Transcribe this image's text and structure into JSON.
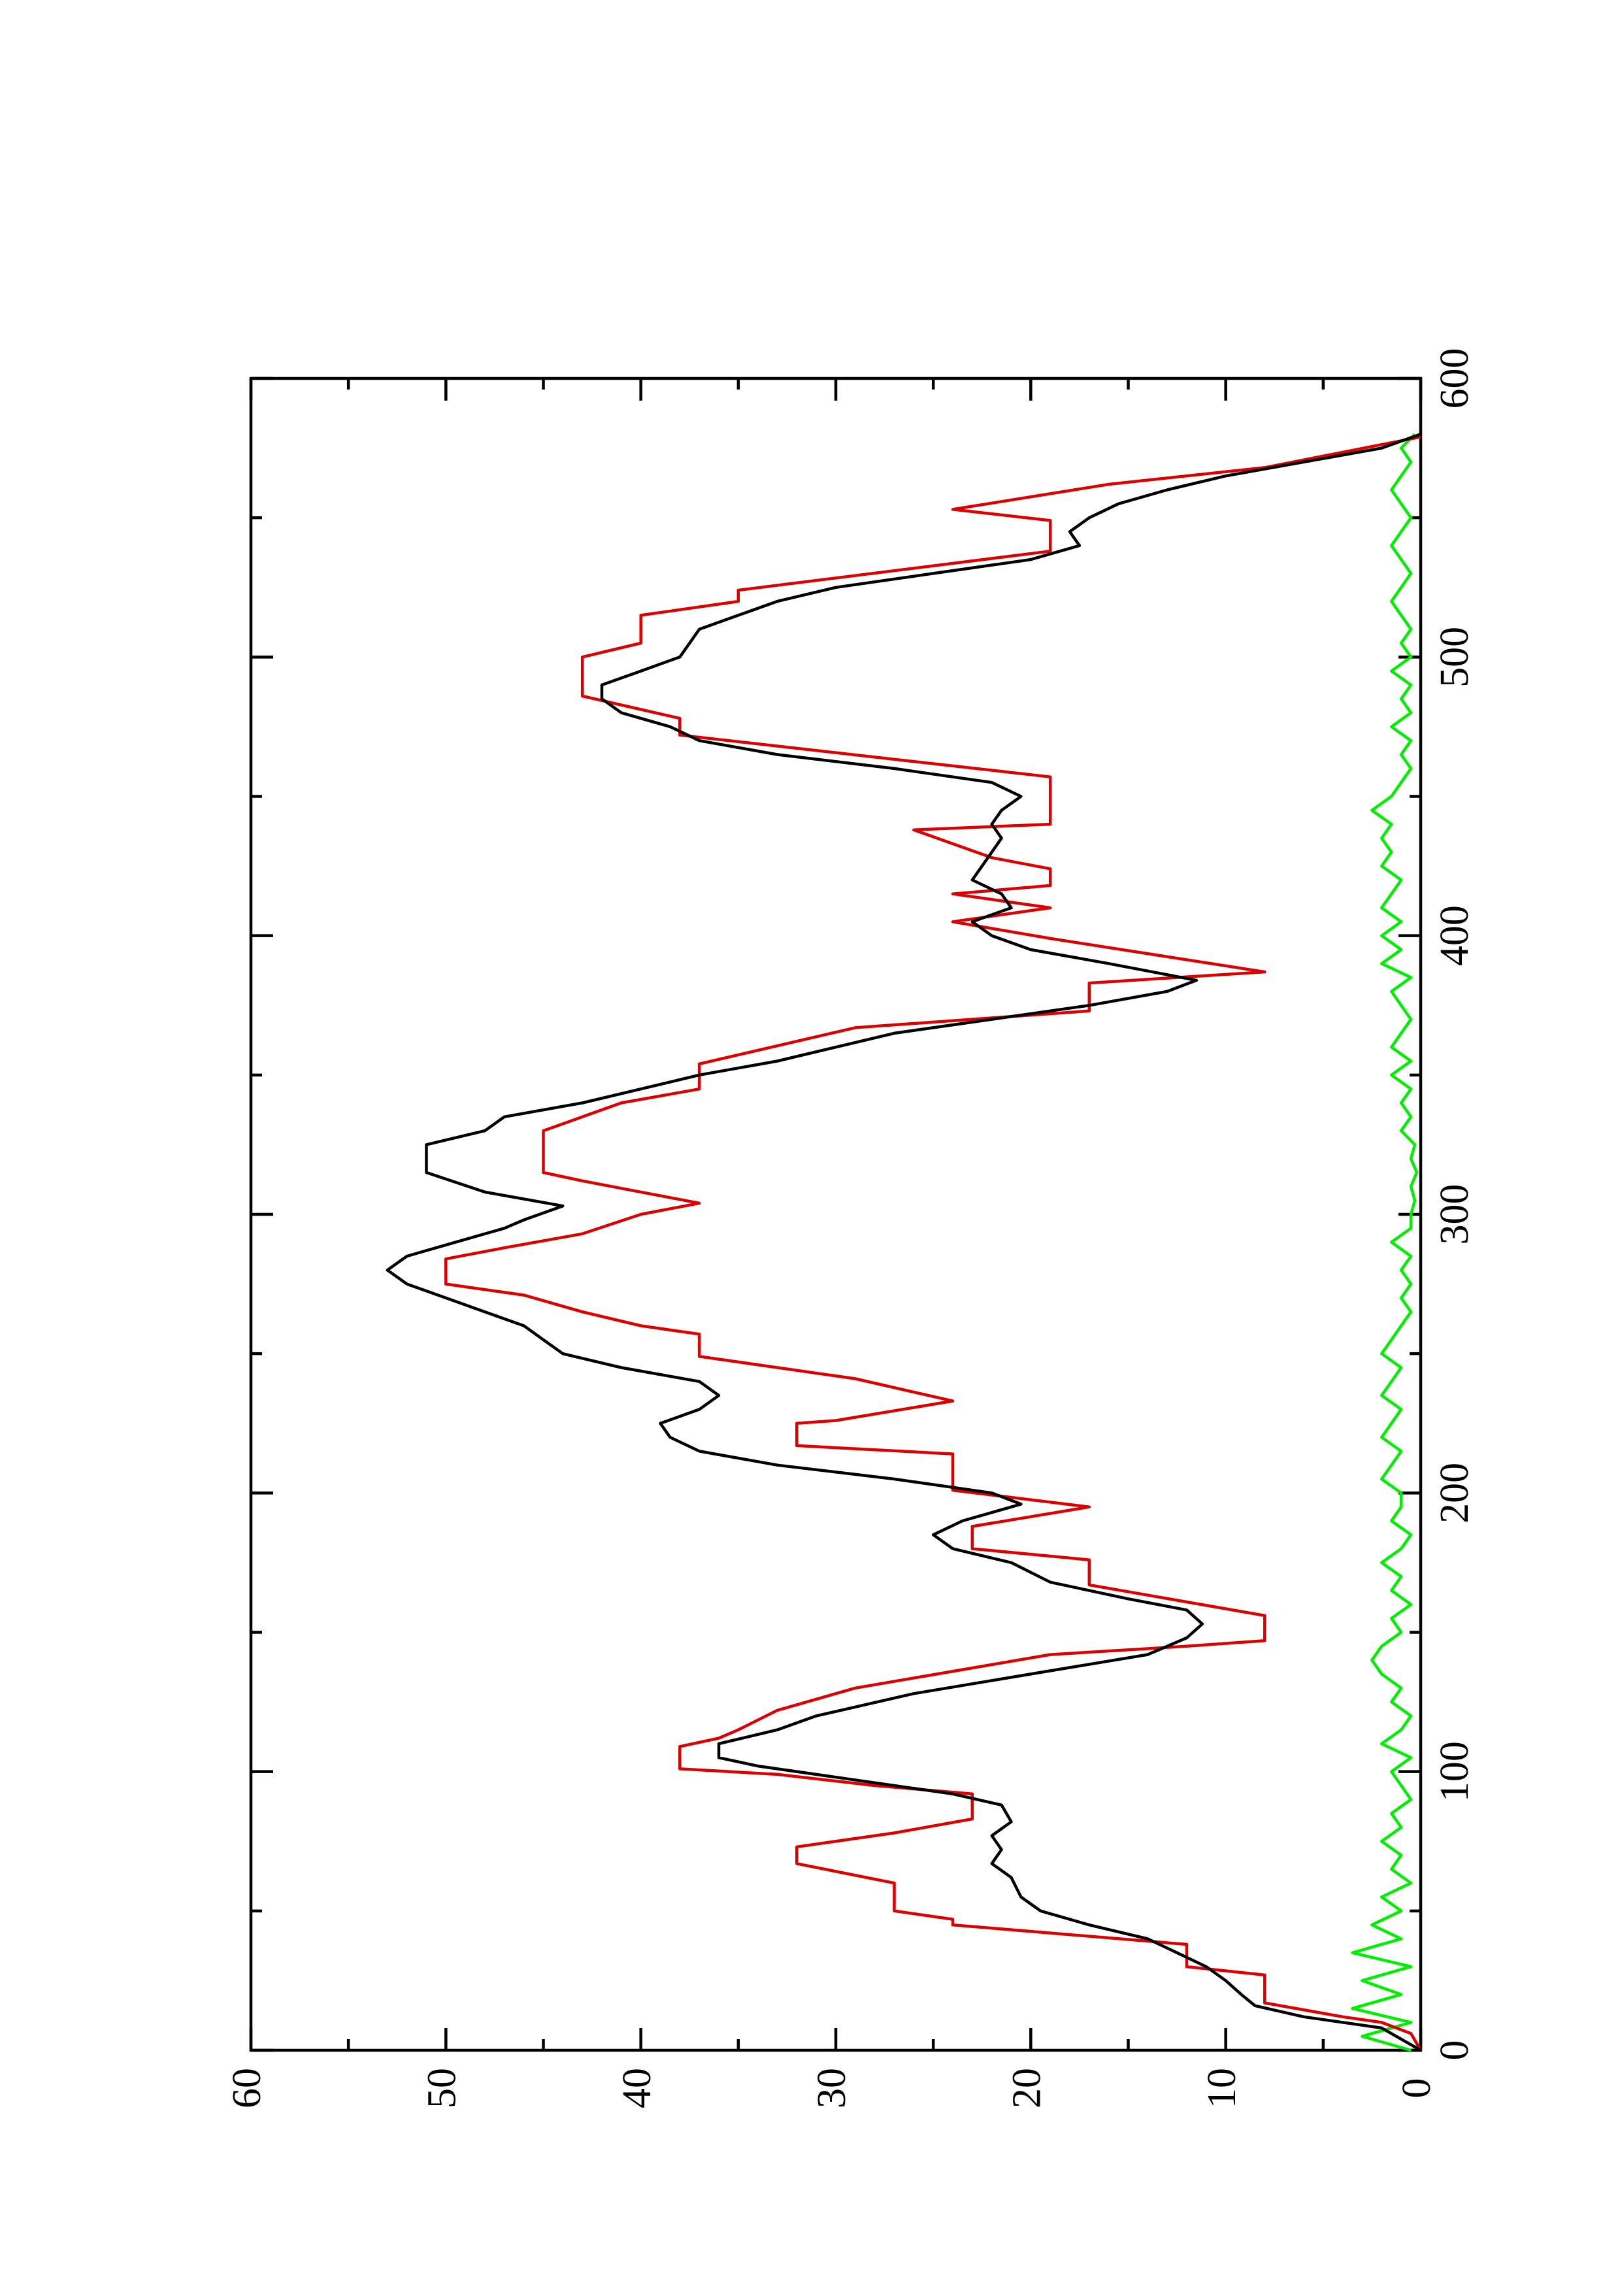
{
  "chart_data": {
    "type": "line",
    "xlim": [
      0,
      600
    ],
    "ylim": [
      0,
      60
    ],
    "xticks": [
      0,
      100,
      200,
      300,
      400,
      500,
      600
    ],
    "yticks": [
      0,
      10,
      20,
      30,
      40,
      50,
      60
    ],
    "xminorticks": [
      50,
      150,
      250,
      350,
      450,
      550
    ],
    "yminorticks": [
      5,
      15,
      25,
      35,
      45,
      55
    ],
    "series": [
      {
        "color": "#00ee00",
        "x": [
          0,
          5,
          10,
          15,
          20,
          25,
          30,
          35,
          40,
          45,
          50,
          55,
          60,
          65,
          70,
          75,
          80,
          85,
          90,
          95,
          100,
          105,
          110,
          115,
          120,
          125,
          130,
          135,
          140,
          145,
          150,
          155,
          160,
          165,
          170,
          175,
          180,
          185,
          190,
          195,
          200,
          205,
          210,
          215,
          220,
          225,
          230,
          235,
          240,
          245,
          250,
          255,
          260,
          265,
          270,
          275,
          280,
          285,
          290,
          295,
          300,
          305,
          310,
          315,
          320,
          325,
          330,
          335,
          340,
          345,
          350,
          355,
          360,
          365,
          370,
          375,
          380,
          385,
          390,
          395,
          400,
          405,
          410,
          415,
          420,
          425,
          430,
          435,
          440,
          445,
          450,
          455,
          460,
          465,
          470,
          475,
          480,
          485,
          490,
          495,
          500,
          505,
          510,
          515,
          520,
          525,
          530,
          535,
          540,
          545,
          550,
          555,
          560,
          565,
          570,
          575,
          580
        ],
        "values": [
          0.5,
          3,
          0.5,
          3.5,
          1,
          3,
          0.5,
          3.5,
          1,
          2.5,
          1,
          2,
          0.5,
          1.5,
          1,
          2,
          1,
          1.5,
          0.5,
          1,
          1.5,
          0.5,
          2,
          1,
          0.5,
          1.5,
          1,
          2,
          2.5,
          2,
          1,
          1.5,
          0.5,
          1.5,
          1,
          2,
          1,
          0.5,
          1.5,
          1,
          1,
          2,
          1.5,
          1,
          2,
          1.5,
          1,
          2,
          1.5,
          1,
          2,
          1.5,
          1,
          0.5,
          1,
          0.5,
          1,
          0.5,
          1.5,
          0.5,
          0.5,
          0.3,
          0.5,
          0.2,
          0.5,
          0.3,
          1,
          0.5,
          1,
          0.5,
          1.5,
          0.5,
          1.5,
          1,
          0.5,
          1,
          1.5,
          0.5,
          2,
          1,
          2,
          1,
          2,
          1.5,
          1,
          2,
          1.5,
          2,
          1.5,
          2.5,
          1.5,
          1,
          0.5,
          1,
          0.5,
          1.5,
          0.5,
          1,
          0.5,
          1.5,
          0.5,
          1,
          0.5,
          1,
          1.5,
          1,
          0.5,
          1,
          1.5,
          1,
          0.5,
          1,
          1.5,
          1,
          0.5,
          1,
          0.3
        ]
      },
      {
        "color": "#dd0000",
        "x": [
          0,
          6,
          10,
          12,
          17,
          27,
          30,
          38,
          45,
          47,
          50,
          60,
          67,
          73,
          78,
          83,
          92,
          95,
          99,
          101,
          109,
          112,
          115,
          122,
          130,
          142,
          145,
          147,
          156,
          167,
          176,
          180,
          188,
          195,
          201,
          214,
          217,
          225,
          226,
          233,
          241,
          249,
          257,
          260,
          265,
          271,
          275,
          284,
          288,
          293,
          300,
          304,
          308,
          312,
          315,
          330,
          335,
          340,
          345,
          354,
          367,
          373,
          383,
          387,
          399,
          405,
          410,
          415,
          418,
          424,
          428,
          438,
          440,
          457,
          472,
          478,
          486,
          500,
          505,
          515,
          520,
          524,
          538,
          549,
          553,
          562,
          568,
          579
        ],
        "values": [
          0,
          0.5,
          2,
          4,
          8,
          8,
          12,
          12,
          24,
          24,
          27,
          27,
          32,
          32,
          27,
          23,
          23,
          28,
          33,
          38,
          38,
          36,
          35,
          33,
          29,
          19,
          12,
          8,
          8,
          17,
          17,
          23,
          23,
          17,
          24,
          24,
          32,
          32,
          30,
          24,
          29,
          37,
          37,
          40,
          43,
          46,
          50,
          50,
          47,
          43,
          40,
          37,
          40,
          43,
          45,
          45,
          43,
          41,
          37,
          37,
          29,
          17,
          17,
          8,
          19,
          24,
          19,
          24,
          19,
          19,
          22,
          26,
          19,
          19,
          38,
          38,
          43,
          43,
          40,
          40,
          35,
          35,
          19,
          19,
          24,
          16,
          8,
          0
        ]
      },
      {
        "color": "#000000",
        "x": [
          0,
          8,
          12,
          16,
          20,
          25,
          30,
          35,
          40,
          45,
          50,
          55,
          62,
          67,
          72,
          77,
          82,
          88,
          92,
          98,
          102,
          105,
          110,
          115,
          120,
          128,
          135,
          142,
          148,
          153,
          158,
          162,
          168,
          175,
          180,
          185,
          190,
          196,
          200,
          205,
          210,
          215,
          220,
          225,
          230,
          235,
          240,
          245,
          250,
          255,
          260,
          265,
          270,
          275,
          280,
          285,
          290,
          295,
          298,
          303,
          308,
          315,
          325,
          330,
          335,
          340,
          345,
          350,
          355,
          360,
          365,
          370,
          375,
          380,
          384,
          390,
          395,
          400,
          405,
          410,
          415,
          420,
          425,
          430,
          435,
          440,
          445,
          450,
          455,
          460,
          465,
          470,
          475,
          480,
          485,
          490,
          495,
          500,
          510,
          515,
          520,
          525,
          530,
          535,
          540,
          545,
          550,
          555,
          560,
          565,
          570,
          575,
          580
        ],
        "values": [
          0,
          2,
          6,
          8.5,
          9.2,
          10,
          11,
          12.5,
          14,
          17,
          19.5,
          20.5,
          21,
          22,
          21.5,
          22,
          21,
          21.5,
          24,
          30,
          34,
          36,
          36,
          33,
          31,
          26,
          20,
          14,
          12,
          11.2,
          12,
          15,
          19,
          21,
          24,
          25,
          23.5,
          20.5,
          22,
          27,
          33,
          37,
          38.5,
          39,
          37,
          36,
          37,
          41,
          44,
          45,
          46,
          48,
          50,
          52,
          53,
          52,
          49.5,
          47,
          46,
          44,
          48,
          51,
          51,
          48,
          47,
          43,
          40,
          37,
          33,
          30,
          27,
          22,
          17,
          13,
          11.5,
          16,
          20,
          22,
          23,
          21,
          21.5,
          23,
          22.5,
          22,
          21.5,
          22,
          21.5,
          20.5,
          22,
          27,
          33,
          37,
          38.5,
          41,
          42,
          42,
          40,
          38,
          37,
          35,
          33,
          30,
          25,
          20,
          17.5,
          18,
          17,
          15.5,
          13,
          10,
          6,
          2,
          0
        ]
      }
    ]
  }
}
